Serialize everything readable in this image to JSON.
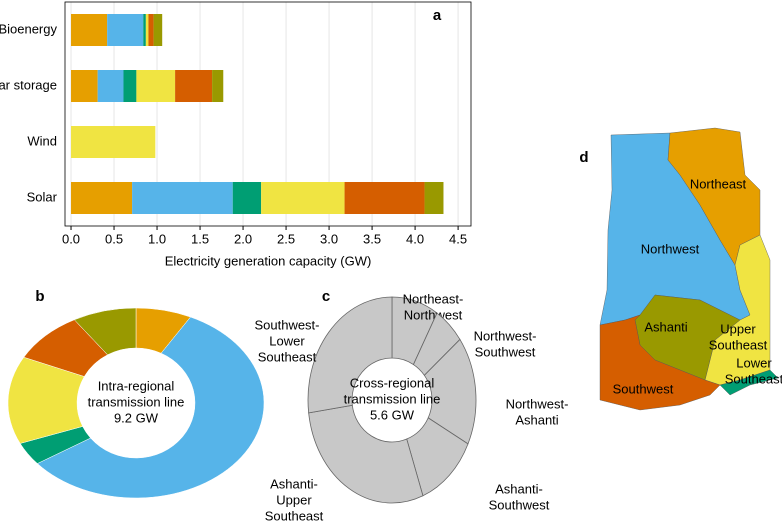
{
  "chart_data": [
    {
      "type": "bar",
      "orientation": "horizontal",
      "stacked": true,
      "panel": "a",
      "categories": [
        "Bioenergy",
        "ar storage",
        "Wind",
        "Solar"
      ],
      "series": [
        {
          "color": "#E69F00",
          "values": [
            0.42,
            0.31,
            0,
            0.71
          ]
        },
        {
          "color": "#56B4E9",
          "values": [
            0.42,
            0.3,
            0,
            1.17
          ]
        },
        {
          "color": "#009E73",
          "values": [
            0.03,
            0.15,
            0,
            0.33
          ]
        },
        {
          "color": "#F0E442",
          "values": [
            0.03,
            0.45,
            0.98,
            0.97
          ]
        },
        {
          "color": "#D55E00",
          "values": [
            0.06,
            0.43,
            0,
            0.93
          ]
        },
        {
          "color": "#999900",
          "values": [
            0.1,
            0.13,
            0,
            0.22
          ]
        }
      ],
      "xlabel": "Electricity generation capacity (GW)",
      "xlim": [
        -0.07,
        4.65
      ],
      "xticks": [
        {
          "value": 0,
          "label": "0.0"
        },
        0.5,
        {
          "value": 1,
          "label": "1.0"
        },
        1.5,
        {
          "value": 2,
          "label": "2.0"
        },
        2.5,
        {
          "value": 3,
          "label": "3.0"
        },
        3.5,
        {
          "value": 4,
          "label": "4.0"
        },
        4.5
      ],
      "grid": true
    },
    {
      "type": "donut",
      "panel": "b",
      "center_text": [
        "Intra-regional",
        "transmission line",
        "9.2 GW"
      ],
      "values": [
        7,
        57,
        4,
        15,
        9,
        8
      ],
      "colors": [
        "#E69F00",
        "#56B4E9",
        "#009E73",
        "#F0E442",
        "#D55E00",
        "#999900"
      ]
    },
    {
      "type": "donut",
      "panel": "c",
      "center_text": [
        "Cross-regional",
        "transmission line",
        "5.6 GW"
      ],
      "labels": [
        [
          "Northeast-",
          "Northwest"
        ],
        [
          "Northwest-",
          "Southwest"
        ],
        [
          "Northwest-",
          "Ashanti"
        ],
        [
          "Ashanti-",
          "Southwest"
        ],
        [
          "Ashanti-",
          "Upper",
          "Southeast"
        ],
        [
          "Southwest-",
          "Lower",
          "Southeast"
        ]
      ],
      "values": [
        9,
        6,
        17,
        12,
        29,
        27
      ],
      "color": "#c8c8c8"
    }
  ],
  "map": {
    "panel": "d",
    "regions": [
      [
        "Northeast"
      ],
      [
        "Northwest"
      ],
      [
        "Ashanti"
      ],
      [
        "Upper",
        "Southeast"
      ],
      [
        "Lower",
        "Southeast"
      ],
      [
        "Southwest"
      ]
    ]
  }
}
